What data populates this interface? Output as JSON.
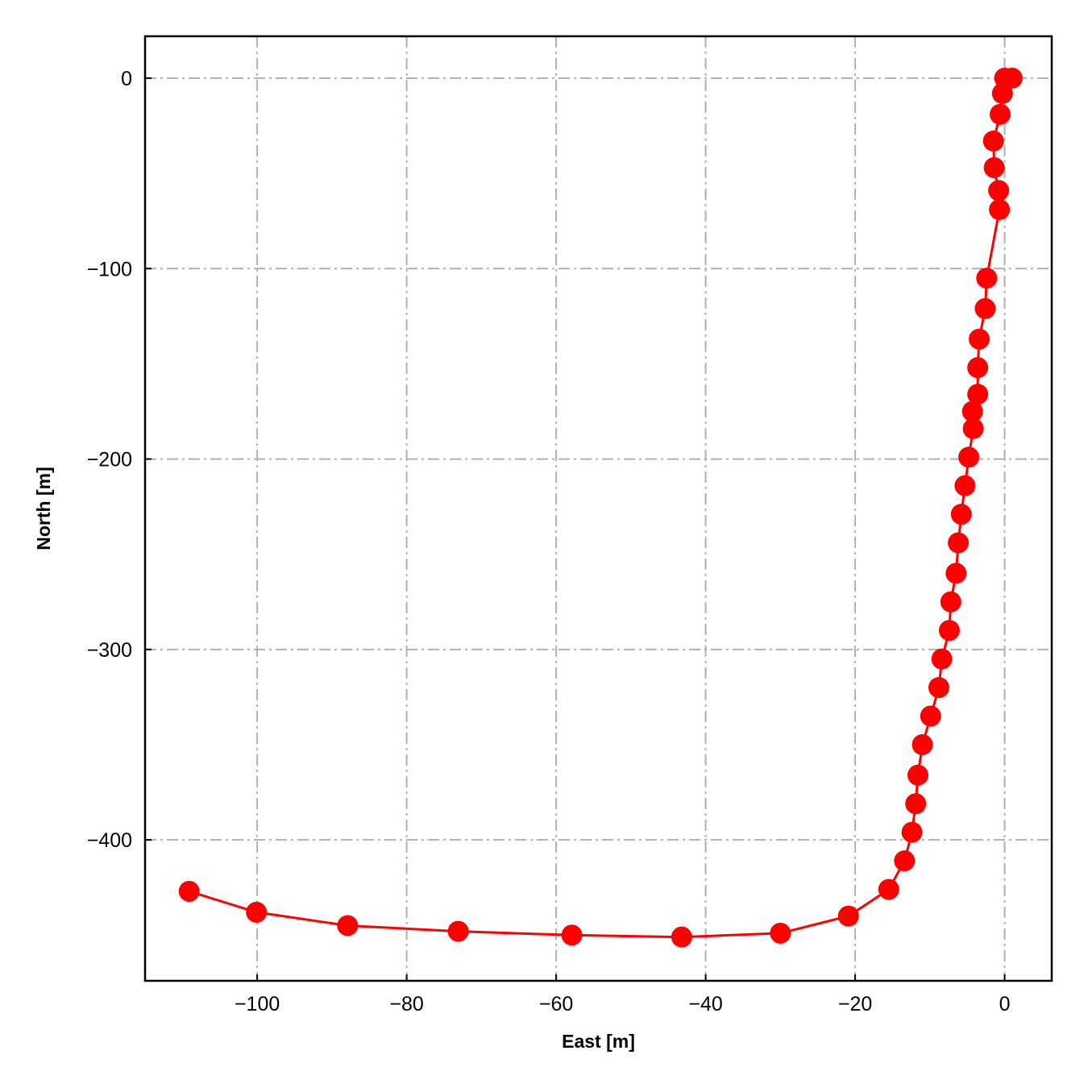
{
  "chart_data": {
    "type": "line",
    "xlabel": "East [m]",
    "ylabel": "North [m]",
    "xlim": [
      -115,
      6.3
    ],
    "ylim": [
      -474,
      22
    ],
    "grid": true,
    "x_ticks": [
      -100,
      -80,
      -60,
      -40,
      -20,
      0
    ],
    "y_ticks": [
      0,
      -100,
      -200,
      -300,
      -400
    ],
    "x_tick_labels": [
      "−100",
      "−80",
      "−60",
      "−40",
      "−20",
      "0"
    ],
    "y_tick_labels": [
      "0",
      "−100",
      "−200",
      "−300",
      "−400"
    ],
    "series": [
      {
        "color": "#ff0000",
        "marker": "circle",
        "points": [
          [
            1.0,
            0.0
          ],
          [
            0.0,
            0.0
          ],
          [
            -0.3,
            -8.0
          ],
          [
            -0.6,
            -19.0
          ],
          [
            -1.5,
            -33.0
          ],
          [
            -1.4,
            -47.0
          ],
          [
            -0.8,
            -59.0
          ],
          [
            -0.7,
            -69.0
          ],
          [
            -2.4,
            -105.0
          ],
          [
            -2.6,
            -121.0
          ],
          [
            -3.4,
            -137.0
          ],
          [
            -3.6,
            -152.0
          ],
          [
            -3.6,
            -166.0
          ],
          [
            -4.3,
            -175.0
          ],
          [
            -4.2,
            -184.0
          ],
          [
            -4.8,
            -199.0
          ],
          [
            -5.3,
            -214.0
          ],
          [
            -5.8,
            -229.0
          ],
          [
            -6.2,
            -244.0
          ],
          [
            -6.5,
            -260.0
          ],
          [
            -7.2,
            -275.0
          ],
          [
            -7.4,
            -290.0
          ],
          [
            -8.4,
            -305.0
          ],
          [
            -8.8,
            -320.0
          ],
          [
            -9.9,
            -335.0
          ],
          [
            -11.0,
            -350.0
          ],
          [
            -11.6,
            -366.0
          ],
          [
            -11.9,
            -381.0
          ],
          [
            -12.4,
            -396.0
          ],
          [
            -13.4,
            -411.0
          ],
          [
            -15.5,
            -426.0
          ],
          [
            -20.9,
            -440.0
          ],
          [
            -30.0,
            -449.0
          ],
          [
            -43.2,
            -451.0
          ],
          [
            -57.9,
            -450.0
          ],
          [
            -73.1,
            -448.0
          ],
          [
            -87.9,
            -445.0
          ],
          [
            -100.1,
            -438.0
          ],
          [
            -109.1,
            -427.0
          ]
        ]
      }
    ]
  }
}
